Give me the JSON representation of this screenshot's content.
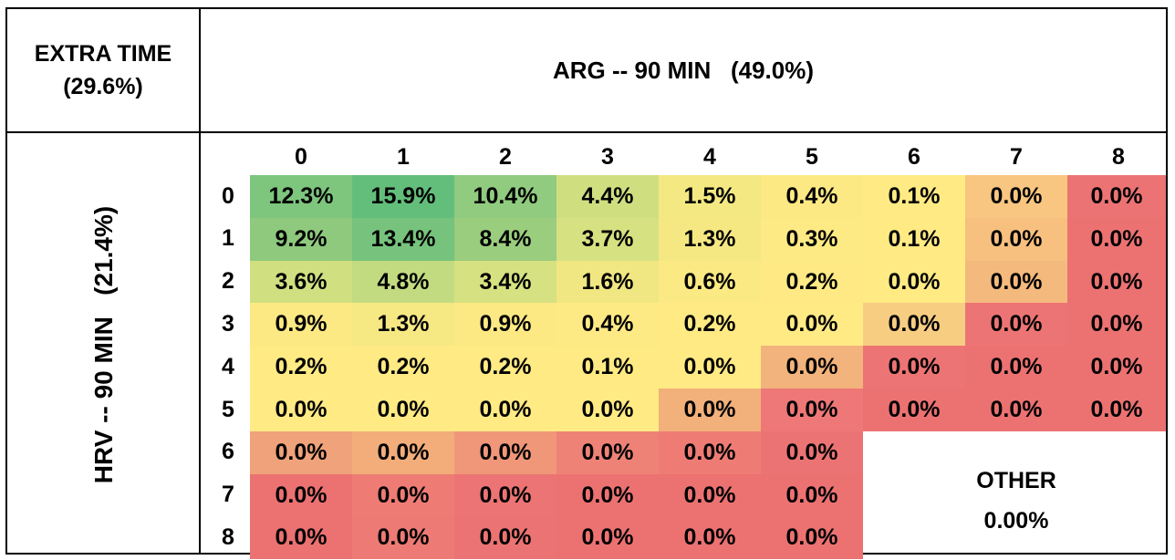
{
  "corner": {
    "line1": "EXTRA TIME",
    "line2": "(29.6%)"
  },
  "column_header": "ARG -- 90 MIN   (49.0%)",
  "row_header": "HRV -- 90 MIN   (21.4%)",
  "other": {
    "label": "OTHER",
    "value": "0.00%"
  },
  "colors": {
    "green": "#63be7b",
    "yellow": "#ffeb84",
    "red": "#f8696b"
  },
  "chart_data": {
    "type": "heatmap",
    "x_label": "ARG -- 90 MIN   (49.0%)",
    "y_label": "HRV -- 90 MIN   (21.4%)",
    "columns": [
      "0",
      "1",
      "2",
      "3",
      "4",
      "5",
      "6",
      "7",
      "8"
    ],
    "rows": [
      "0",
      "1",
      "2",
      "3",
      "4",
      "5",
      "6",
      "7",
      "8"
    ],
    "values": [
      [
        "12.3%",
        "15.9%",
        "10.4%",
        "4.4%",
        "1.5%",
        "0.4%",
        "0.1%",
        "0.0%",
        "0.0%"
      ],
      [
        "9.2%",
        "13.4%",
        "8.4%",
        "3.7%",
        "1.3%",
        "0.3%",
        "0.1%",
        "0.0%",
        "0.0%"
      ],
      [
        "3.6%",
        "4.8%",
        "3.4%",
        "1.6%",
        "0.6%",
        "0.2%",
        "0.0%",
        "0.0%",
        "0.0%"
      ],
      [
        "0.9%",
        "1.3%",
        "0.9%",
        "0.4%",
        "0.2%",
        "0.0%",
        "0.0%",
        "0.0%",
        "0.0%"
      ],
      [
        "0.2%",
        "0.2%",
        "0.2%",
        "0.1%",
        "0.0%",
        "0.0%",
        "0.0%",
        "0.0%",
        "0.0%"
      ],
      [
        "0.0%",
        "0.0%",
        "0.0%",
        "0.0%",
        "0.0%",
        "0.0%",
        "0.0%",
        "0.0%",
        "0.0%"
      ],
      [
        "0.0%",
        "0.0%",
        "0.0%",
        "0.0%",
        "0.0%",
        "0.0%",
        null,
        null,
        null
      ],
      [
        "0.0%",
        "0.0%",
        "0.0%",
        "0.0%",
        "0.0%",
        "0.0%",
        null,
        null,
        null
      ],
      [
        "0.0%",
        "0.0%",
        "0.0%",
        "0.0%",
        "0.0%",
        "0.0%",
        null,
        null,
        null
      ]
    ],
    "cell_colors": [
      [
        "#7ec57e",
        "#63be7b",
        "#90cb7f",
        "#cfdf80",
        "#f4e883",
        "#fde983",
        "#ffea84",
        "#f8c680",
        "#ec7373"
      ],
      [
        "#8ec97e",
        "#77c37d",
        "#9bcd7f",
        "#d6e181",
        "#f5e883",
        "#feea84",
        "#ffea84",
        "#f7c07f",
        "#ec7272"
      ],
      [
        "#d0df80",
        "#c2db80",
        "#d6e181",
        "#f0e682",
        "#fbe983",
        "#fee984",
        "#ffea84",
        "#f4b97d",
        "#ec7272"
      ],
      [
        "#fce983",
        "#f6e883",
        "#fce983",
        "#feea84",
        "#ffea84",
        "#ffea84",
        "#f7cd82",
        "#ed7474",
        "#ec7272"
      ],
      [
        "#ffea84",
        "#ffea84",
        "#ffea84",
        "#ffea84",
        "#ffea84",
        "#f2b37c",
        "#ed7474",
        "#ec7272",
        "#ec7272"
      ],
      [
        "#ffea84",
        "#ffea84",
        "#ffea84",
        "#ffea84",
        "#f2b07b",
        "#ee7777",
        "#ec7272",
        "#ec7272",
        "#ec7272"
      ],
      [
        "#f0a27a",
        "#f2ad7b",
        "#f0977a",
        "#ee8276",
        "#ee7c75",
        "#ec7373",
        null,
        null,
        null
      ],
      [
        "#ec7171",
        "#ee7c75",
        "#ec7474",
        "#ec7272",
        "#ec7272",
        "#ec7272",
        null,
        null,
        null
      ],
      [
        "#ec7171",
        "#ee7a75",
        "#ec7373",
        "#ec7272",
        "#ec7272",
        "#ec7272",
        null,
        null,
        null
      ]
    ]
  }
}
